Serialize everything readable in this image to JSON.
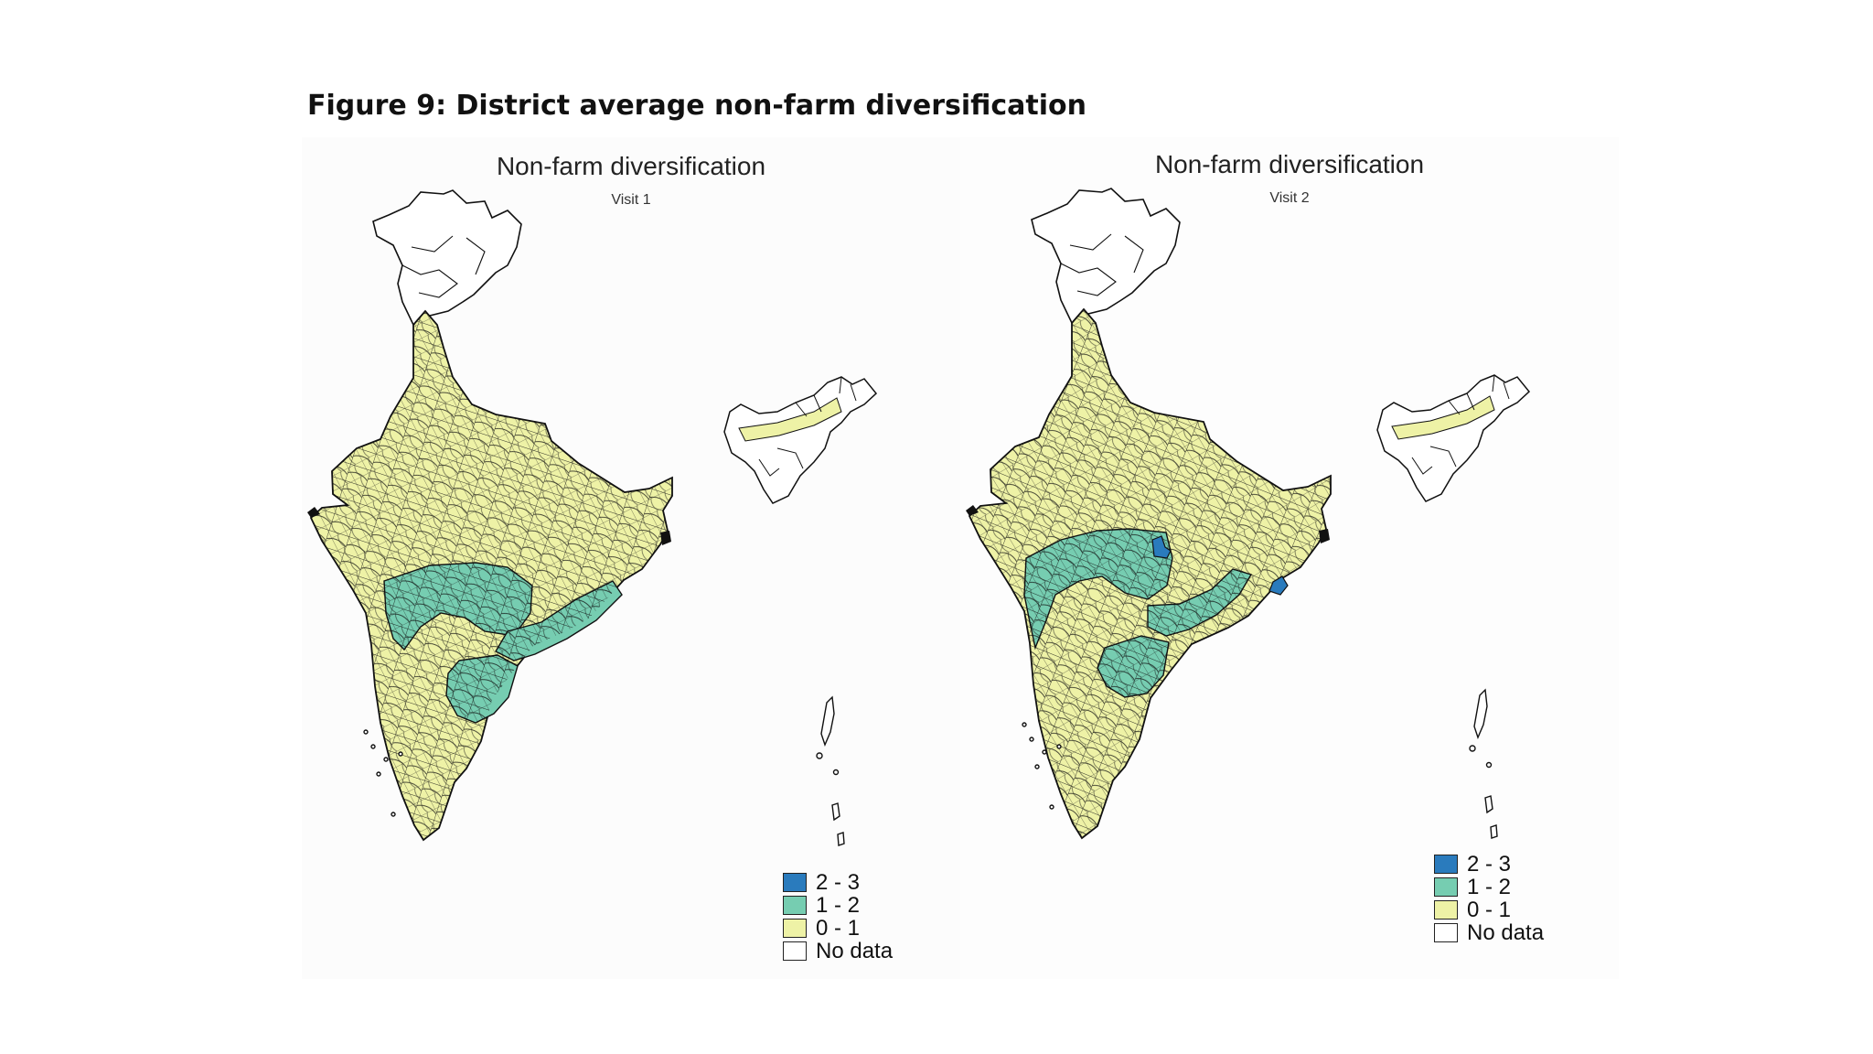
{
  "figure_title": "Figure 9: District average non-farm diversification",
  "colors": {
    "c2_3": "#2a7bbd",
    "c1_2": "#76cdb1",
    "c0_1": "#eef2a6",
    "no_data": "#ffffff",
    "border": "#111111"
  },
  "legend": [
    {
      "label": "2 - 3",
      "color_key": "c2_3"
    },
    {
      "label": "1 - 2",
      "color_key": "c1_2"
    },
    {
      "label": "0 - 1",
      "color_key": "c0_1"
    },
    {
      "label": "No data",
      "color_key": "no_data"
    }
  ],
  "maps": [
    {
      "title": "Non-farm diversification",
      "subtitle": "Visit 1",
      "regions": [
        {
          "name": "north-kashmir",
          "class": "No data"
        },
        {
          "name": "mainland",
          "class": "0 - 1"
        },
        {
          "name": "central-deccan",
          "class": "1 - 2"
        },
        {
          "name": "east-coast",
          "class": "1 - 2"
        },
        {
          "name": "southern-belt",
          "class": "1 - 2"
        },
        {
          "name": "northeast",
          "class": "No data"
        },
        {
          "name": "islands",
          "class": "No data"
        }
      ]
    },
    {
      "title": "Non-farm diversification",
      "subtitle": "Visit 2",
      "regions": [
        {
          "name": "north-kashmir",
          "class": "No data"
        },
        {
          "name": "mainland",
          "class": "0 - 1"
        },
        {
          "name": "central-deccan",
          "class": "1 - 2"
        },
        {
          "name": "east-coast",
          "class": "1 - 2"
        },
        {
          "name": "southern-belt",
          "class": "1 - 2"
        },
        {
          "name": "hotspot-west",
          "class": "2 - 3"
        },
        {
          "name": "hotspot-east",
          "class": "2 - 3"
        },
        {
          "name": "northeast",
          "class": "No data"
        },
        {
          "name": "islands",
          "class": "No data"
        }
      ]
    }
  ]
}
